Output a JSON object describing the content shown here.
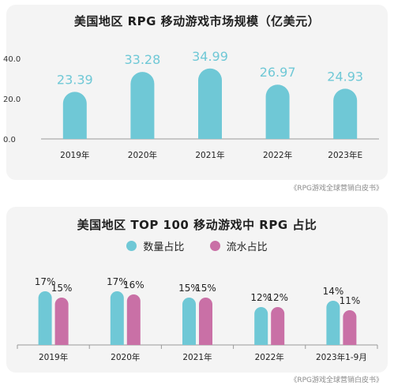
{
  "source_note": "《RPG游戏全球营销白皮书》",
  "colors": {
    "teal": "#6fc8d6",
    "pink": "#c970a6",
    "axis": "#9a9a9a"
  },
  "chart_data": [
    {
      "type": "bar",
      "title": "美国地区 RPG 移动游戏市场规模（亿美元）",
      "categories": [
        "2019年",
        "2020年",
        "2021年",
        "2022年",
        "2023年E"
      ],
      "values": [
        23.39,
        33.28,
        34.99,
        26.97,
        24.93
      ],
      "value_labels": [
        "23.39",
        "33.28",
        "34.99",
        "26.97",
        "24.93"
      ],
      "yticks": [
        0,
        20,
        40
      ],
      "ytick_labels": [
        "0.0",
        "20.0",
        "40.0"
      ],
      "ylim": [
        0,
        40
      ],
      "grid": false
    },
    {
      "type": "bar",
      "title": "美国地区 TOP 100 移动游戏中 RPG 占比",
      "categories": [
        "2019年",
        "2020年",
        "2021年",
        "2022年",
        "2023年1-9月"
      ],
      "series": [
        {
          "name": "数量占比",
          "values": [
            17,
            17,
            15,
            12,
            14
          ],
          "labels": [
            "17%",
            "17%",
            "15%",
            "12%",
            "14%"
          ]
        },
        {
          "name": "流水占比",
          "values": [
            15,
            16,
            15,
            12,
            11
          ],
          "labels": [
            "15%",
            "16%",
            "15%",
            "12%",
            "11%"
          ]
        }
      ],
      "legend": "top-center",
      "grid": false
    }
  ]
}
